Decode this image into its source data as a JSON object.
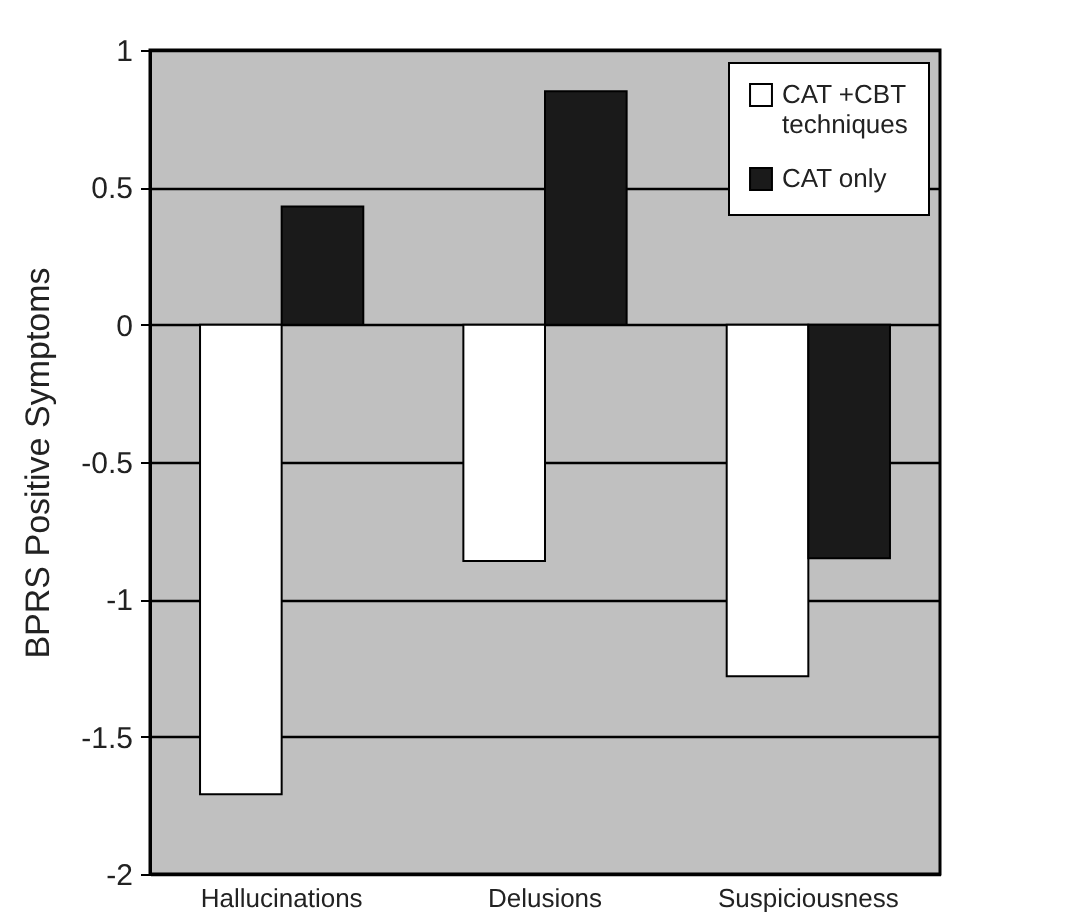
{
  "chart_data": {
    "type": "bar",
    "ylabel": "BPRS Positive Symptoms",
    "categories": [
      "Hallucinations",
      "Delusions",
      "Suspiciousness"
    ],
    "series": [
      {
        "name": "CAT +CBT techniques",
        "color": "#ffffff",
        "values": [
          -1.71,
          -0.86,
          -1.28
        ]
      },
      {
        "name": "CAT  only",
        "color": "#1a1a1a",
        "values": [
          0.43,
          0.85,
          -0.85
        ]
      }
    ],
    "ylim": [
      -2,
      1
    ],
    "yticks": [
      -2,
      -1.5,
      -1,
      -0.5,
      0,
      0.5,
      1
    ],
    "grid": "y",
    "legend": "top right"
  }
}
